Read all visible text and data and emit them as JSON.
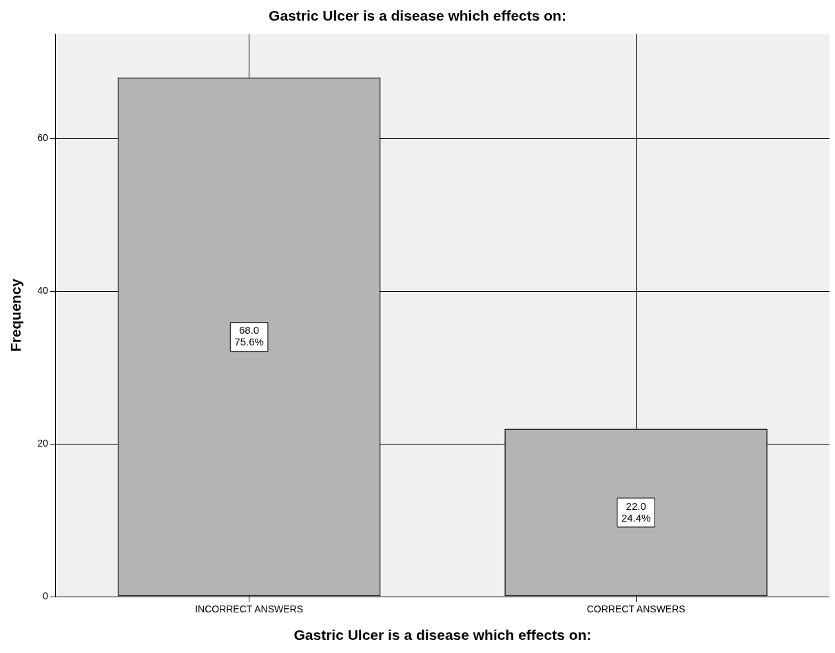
{
  "chart_data": {
    "type": "bar",
    "title": "Gastric Ulcer is a disease which effects on:",
    "xlabel": "Gastric Ulcer is a disease which effects on:",
    "ylabel": "Frequency",
    "categories": [
      "INCORRECT ANSWERS",
      "CORRECT ANSWERS"
    ],
    "values": [
      68,
      22
    ],
    "value_labels": [
      "68.0\n75.6%",
      "22.0\n24.4%"
    ],
    "color": "#b4b4b4",
    "ylim": [
      0,
      73.7
    ],
    "yticks": [
      0,
      20,
      40,
      60
    ],
    "grid": true
  }
}
